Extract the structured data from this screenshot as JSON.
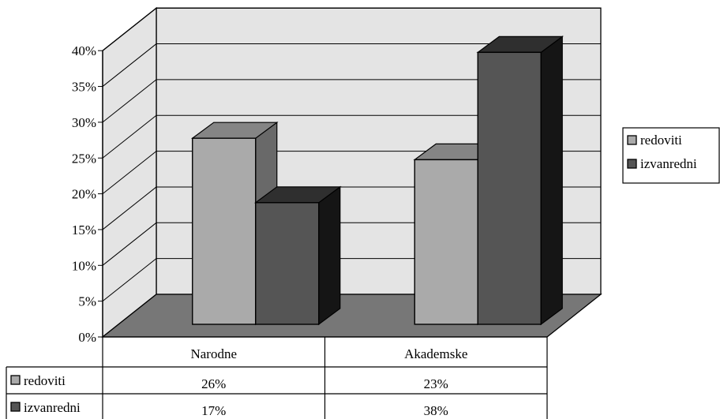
{
  "chart_data": {
    "type": "bar",
    "style": "3d-clustered-column",
    "categories": [
      "Narodne",
      "Akademske"
    ],
    "series": [
      {
        "name": "redoviti",
        "values": [
          26,
          23
        ],
        "color": "#aaaaaa"
      },
      {
        "name": "izvanredni",
        "values": [
          17,
          38
        ],
        "color": "#555555"
      }
    ],
    "y_ticks": [
      "0%",
      "5%",
      "10%",
      "15%",
      "20%",
      "25%",
      "30%",
      "35%",
      "40%"
    ],
    "ylim": [
      0,
      40
    ],
    "value_suffix": "%",
    "grid": true,
    "legend_position": "right",
    "data_table": true
  },
  "colors": {
    "wall": "#e4e4e4",
    "floor": "#777777",
    "bar_light": "#aaaaaa",
    "bar_dark": "#555555",
    "outline": "#000000"
  }
}
